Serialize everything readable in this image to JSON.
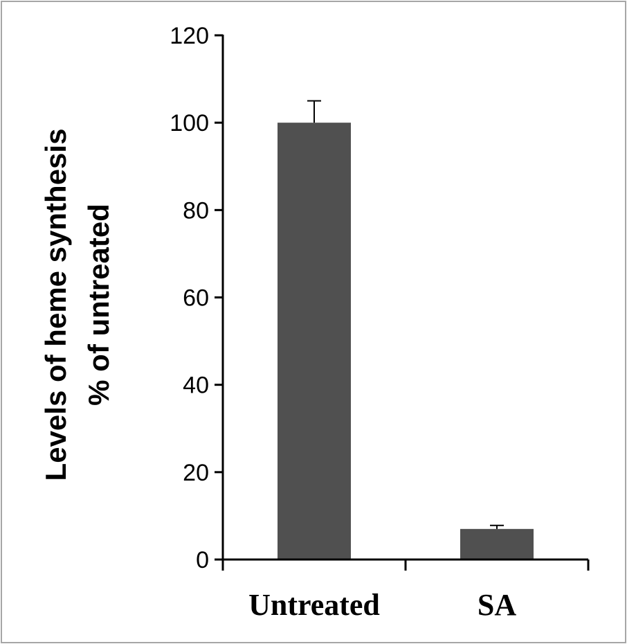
{
  "chart_data": {
    "type": "bar",
    "categories": [
      "Untreated",
      "SA"
    ],
    "values": [
      100,
      7
    ],
    "errors": [
      5,
      0.8
    ],
    "ylabel_line1": "Levels of heme synthesis",
    "ylabel_line2": "% of untreated",
    "xlabel": "",
    "title": "",
    "ylim": [
      0,
      120
    ],
    "yticks": [
      0,
      20,
      40,
      60,
      80,
      100,
      120
    ],
    "grid": false,
    "legend": "none",
    "bar_color": "#505050",
    "axis_color": "#000000",
    "frame_color": "#a6a6a6"
  }
}
